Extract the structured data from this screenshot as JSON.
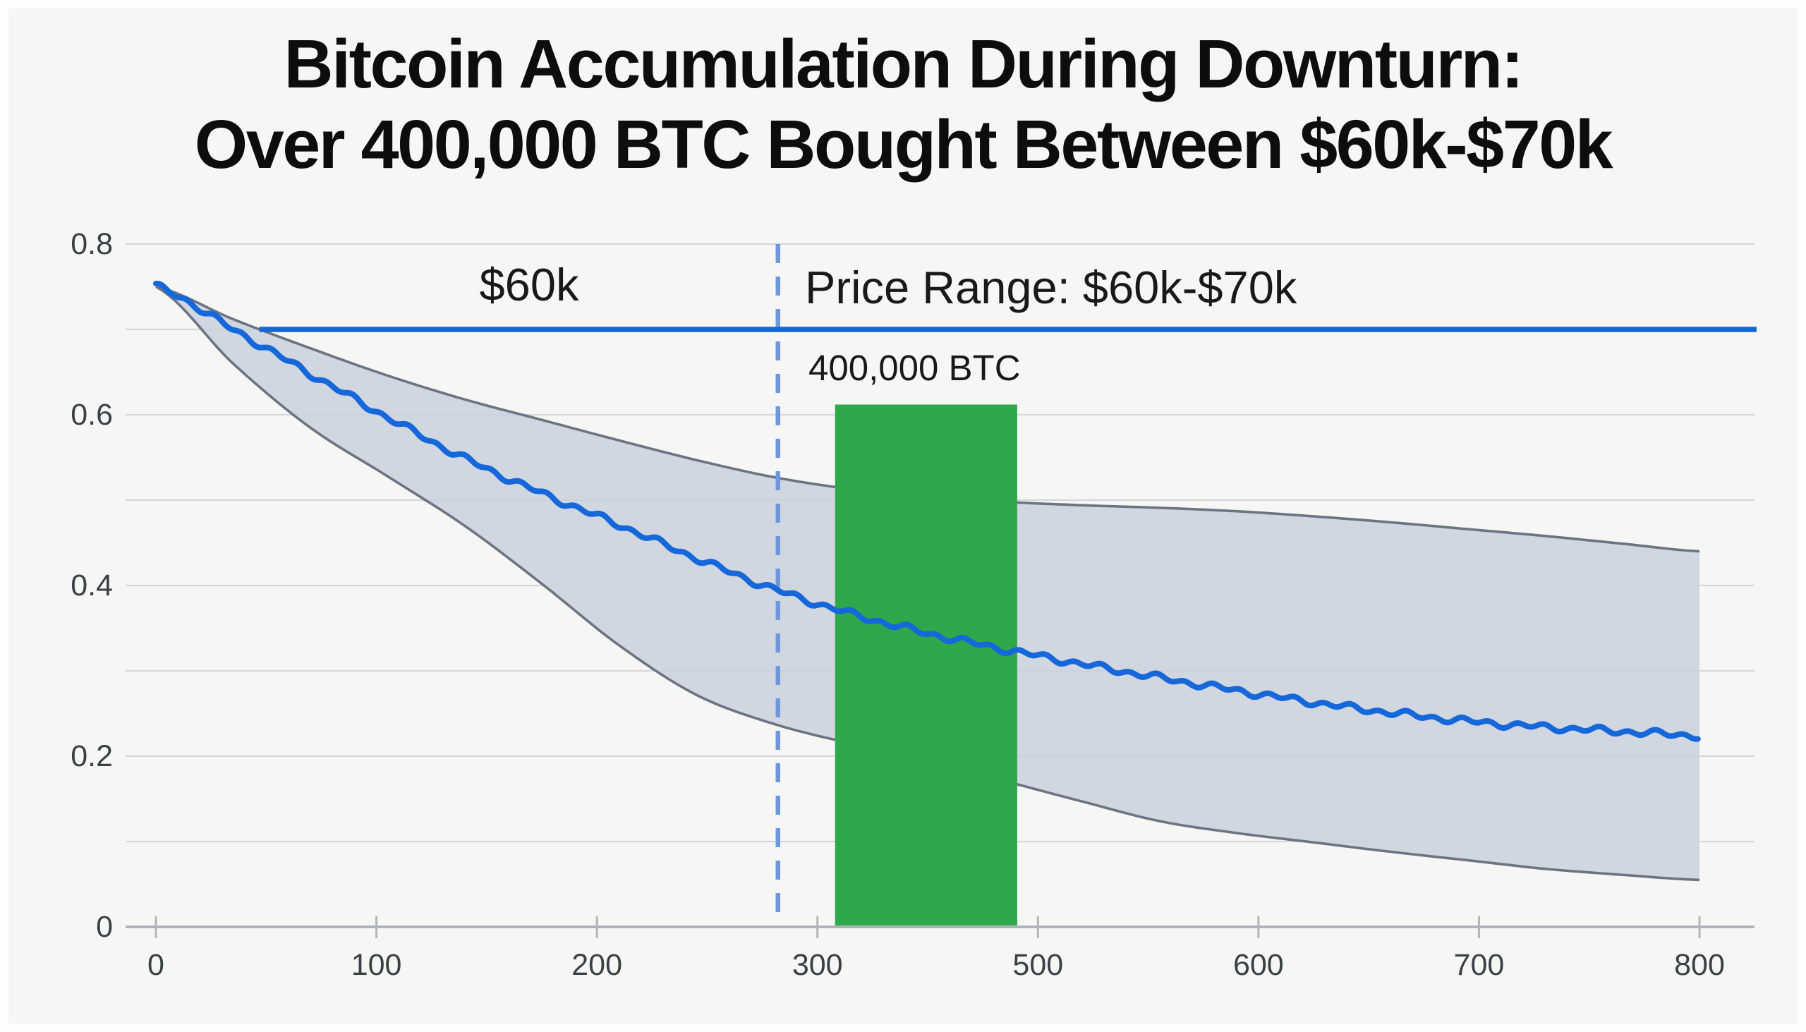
{
  "title": {
    "line1": "Bitcoin Accumulation During Downturn:",
    "line2": "Over 400,000 BTC Bought Between $60k-$70k"
  },
  "annotations": {
    "hline_label": "$60k",
    "price_range_label": "Price Range: $60k-$70k",
    "bar_label": "400,000 BTC"
  },
  "colors": {
    "background": "#f6f7f5",
    "grid": "#d4d7db",
    "axis": "#a8aeb6",
    "tick": "#b0b5bc",
    "tick_text": "#3a4047",
    "title_text": "#0c0d0e",
    "band_fill": "#ccd3dd",
    "band_edge": "#6b7482",
    "main_line": "#1668da",
    "reference_line": "#1465d6",
    "dashed_line": "#6f98dc",
    "bar_green": "#2ea84a"
  },
  "chart_data": {
    "type": "line",
    "title": "Bitcoin Accumulation During Downturn: Over 400,000 BTC Bought Between $60k-$70k",
    "xlabel": "",
    "ylabel": "",
    "x_tick_labels": [
      "0",
      "100",
      "200",
      "300",
      "500",
      "600",
      "700",
      "800"
    ],
    "x_tick_note": "ticks evenly spaced; the 400 label is skipped in the image",
    "y_tick_labels": [
      "0",
      "0.2",
      "0.4",
      "0.6",
      "0.8"
    ],
    "y_major_ticks": [
      0,
      0.2,
      0.4,
      0.6,
      0.8
    ],
    "y_minor_gridlines": [
      0.1,
      0.3,
      0.5,
      0.7
    ],
    "ylim": [
      0,
      0.84
    ],
    "grid": true,
    "legend": false,
    "series": [
      {
        "name": "median-line",
        "style": "noisy-line",
        "color": "#1668da",
        "f": [
          0,
          0.05,
          0.1,
          0.15,
          0.2,
          0.25,
          0.3,
          0.35,
          0.4,
          0.45,
          0.5,
          0.55,
          0.6,
          0.65,
          0.7,
          0.75,
          0.8,
          0.85,
          0.9,
          0.95,
          1
        ],
        "values": [
          0.75,
          0.7,
          0.648,
          0.597,
          0.549,
          0.508,
          0.471,
          0.432,
          0.396,
          0.367,
          0.344,
          0.325,
          0.308,
          0.292,
          0.277,
          0.263,
          0.251,
          0.241,
          0.234,
          0.229,
          0.224
        ]
      },
      {
        "name": "band-upper",
        "style": "band-edge",
        "color": "#6b7482",
        "f": [
          0,
          0.05,
          0.1,
          0.15,
          0.2,
          0.25,
          0.3,
          0.35,
          0.4,
          0.45,
          0.5,
          0.55,
          0.6,
          0.65,
          0.7,
          0.75,
          0.8,
          0.85,
          0.9,
          0.95,
          1
        ],
        "values": [
          0.75,
          0.712,
          0.678,
          0.646,
          0.618,
          0.594,
          0.57,
          0.547,
          0.527,
          0.513,
          0.504,
          0.498,
          0.494,
          0.491,
          0.487,
          0.481,
          0.474,
          0.466,
          0.458,
          0.449,
          0.44
        ]
      },
      {
        "name": "band-lower",
        "style": "band-edge",
        "color": "#6b7482",
        "f": [
          0,
          0.05,
          0.1,
          0.15,
          0.2,
          0.25,
          0.3,
          0.35,
          0.4,
          0.45,
          0.5,
          0.55,
          0.6,
          0.65,
          0.7,
          0.75,
          0.8,
          0.85,
          0.9,
          0.95,
          1
        ],
        "values": [
          0.75,
          0.66,
          0.585,
          0.528,
          0.47,
          0.402,
          0.33,
          0.272,
          0.238,
          0.215,
          0.196,
          0.171,
          0.147,
          0.124,
          0.11,
          0.099,
          0.088,
          0.078,
          0.068,
          0.061,
          0.055
        ]
      }
    ],
    "reference_line": {
      "value": 0.7,
      "label": "$60k",
      "color": "#1465d6",
      "f_start": 0.067,
      "f_end": 1.037
    },
    "vline": {
      "f": 0.403,
      "style": "dashed",
      "color": "#6f98dc",
      "top_value": 0.8
    },
    "bar": {
      "label": "400,000 BTC",
      "f_left": 0.44,
      "f_right": 0.558,
      "top_value": 0.612,
      "color": "#2ea84a"
    }
  }
}
